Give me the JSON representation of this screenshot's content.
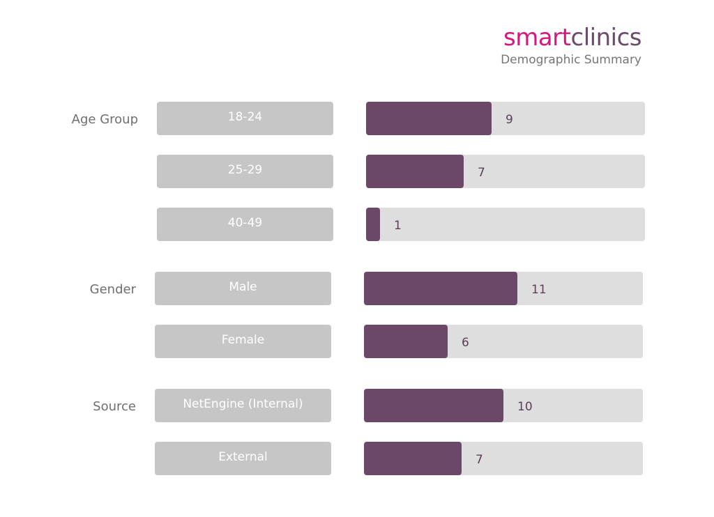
{
  "brand": {
    "logo_part1": "smart",
    "logo_part2": "clinics",
    "subtitle": "Demographic Summary"
  },
  "colors": {
    "brand_pink": "#d6177c",
    "bar_fill": "#6b4868",
    "bar_track": "#dedede",
    "category_box": "#c6c6c6"
  },
  "chart_data": {
    "type": "bar",
    "orientation": "horizontal",
    "xlim": [
      0,
      20
    ],
    "groups": [
      {
        "name": "Age Group",
        "categories": [
          "18-24",
          "25-29",
          "40-49"
        ],
        "values": [
          9,
          7,
          1
        ]
      },
      {
        "name": "Gender",
        "categories": [
          "Male",
          "Female"
        ],
        "values": [
          11,
          6
        ]
      },
      {
        "name": "Source",
        "categories": [
          "NetEngine (Internal)",
          "External"
        ],
        "values": [
          10,
          7
        ]
      }
    ]
  }
}
